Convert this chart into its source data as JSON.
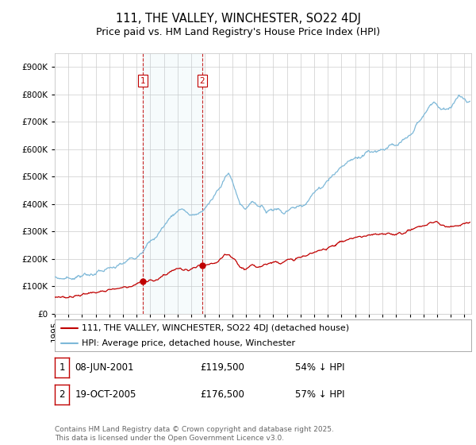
{
  "title": "111, THE VALLEY, WINCHESTER, SO22 4DJ",
  "subtitle": "Price paid vs. HM Land Registry's House Price Index (HPI)",
  "ylim": [
    0,
    950000
  ],
  "yticks": [
    0,
    100000,
    200000,
    300000,
    400000,
    500000,
    600000,
    700000,
    800000,
    900000
  ],
  "xlim_start": 1995.0,
  "xlim_end": 2025.5,
  "background_color": "#ffffff",
  "grid_color": "#cccccc",
  "hpi_color": "#7db8d8",
  "price_color": "#c00000",
  "purchase1_date": 2001.44,
  "purchase1_price": 119500,
  "purchase1_label": "1",
  "purchase2_date": 2005.8,
  "purchase2_price": 176500,
  "purchase2_label": "2",
  "legend_label_red": "111, THE VALLEY, WINCHESTER, SO22 4DJ (detached house)",
  "legend_label_blue": "HPI: Average price, detached house, Winchester",
  "table_row1": [
    "1",
    "08-JUN-2001",
    "£119,500",
    "54% ↓ HPI"
  ],
  "table_row2": [
    "2",
    "19-OCT-2005",
    "£176,500",
    "57% ↓ HPI"
  ],
  "footnote": "Contains HM Land Registry data © Crown copyright and database right 2025.\nThis data is licensed under the Open Government Licence v3.0.",
  "title_fontsize": 10.5,
  "subtitle_fontsize": 9,
  "tick_fontsize": 7.5,
  "legend_fontsize": 8,
  "table_fontsize": 8.5,
  "footnote_fontsize": 6.5,
  "hpi_anchors": [
    [
      1995.0,
      132000
    ],
    [
      1995.5,
      128000
    ],
    [
      1996.0,
      130000
    ],
    [
      1996.5,
      133000
    ],
    [
      1997.0,
      138000
    ],
    [
      1997.5,
      142000
    ],
    [
      1998.0,
      148000
    ],
    [
      1998.5,
      155000
    ],
    [
      1999.0,
      162000
    ],
    [
      1999.5,
      170000
    ],
    [
      2000.0,
      182000
    ],
    [
      2000.5,
      198000
    ],
    [
      2001.0,
      212000
    ],
    [
      2001.5,
      235000
    ],
    [
      2002.0,
      260000
    ],
    [
      2002.5,
      285000
    ],
    [
      2003.0,
      320000
    ],
    [
      2003.5,
      355000
    ],
    [
      2004.0,
      375000
    ],
    [
      2004.3,
      385000
    ],
    [
      2004.6,
      370000
    ],
    [
      2004.9,
      360000
    ],
    [
      2005.2,
      355000
    ],
    [
      2005.5,
      365000
    ],
    [
      2005.8,
      375000
    ],
    [
      2006.2,
      395000
    ],
    [
      2006.6,
      420000
    ],
    [
      2007.0,
      455000
    ],
    [
      2007.4,
      495000
    ],
    [
      2007.7,
      510000
    ],
    [
      2008.0,
      480000
    ],
    [
      2008.3,
      440000
    ],
    [
      2008.6,
      400000
    ],
    [
      2008.9,
      380000
    ],
    [
      2009.2,
      395000
    ],
    [
      2009.5,
      415000
    ],
    [
      2009.8,
      400000
    ],
    [
      2010.2,
      385000
    ],
    [
      2010.5,
      375000
    ],
    [
      2010.8,
      380000
    ],
    [
      2011.2,
      385000
    ],
    [
      2011.5,
      378000
    ],
    [
      2011.8,
      372000
    ],
    [
      2012.2,
      378000
    ],
    [
      2012.5,
      385000
    ],
    [
      2012.8,
      390000
    ],
    [
      2013.2,
      400000
    ],
    [
      2013.5,
      415000
    ],
    [
      2014.0,
      440000
    ],
    [
      2014.5,
      460000
    ],
    [
      2015.0,
      490000
    ],
    [
      2015.5,
      510000
    ],
    [
      2016.0,
      535000
    ],
    [
      2016.5,
      555000
    ],
    [
      2017.0,
      570000
    ],
    [
      2017.5,
      580000
    ],
    [
      2018.0,
      590000
    ],
    [
      2018.5,
      595000
    ],
    [
      2019.0,
      600000
    ],
    [
      2019.5,
      610000
    ],
    [
      2020.0,
      610000
    ],
    [
      2020.5,
      625000
    ],
    [
      2021.0,
      650000
    ],
    [
      2021.5,
      685000
    ],
    [
      2022.0,
      720000
    ],
    [
      2022.5,
      760000
    ],
    [
      2022.8,
      775000
    ],
    [
      2023.0,
      760000
    ],
    [
      2023.3,
      740000
    ],
    [
      2023.6,
      745000
    ],
    [
      2024.0,
      755000
    ],
    [
      2024.3,
      780000
    ],
    [
      2024.6,
      800000
    ],
    [
      2024.9,
      790000
    ],
    [
      2025.2,
      775000
    ],
    [
      2025.4,
      778000
    ]
  ],
  "price_anchors": [
    [
      1995.0,
      60000
    ],
    [
      1995.5,
      58000
    ],
    [
      1996.0,
      62000
    ],
    [
      1996.5,
      65000
    ],
    [
      1997.0,
      70000
    ],
    [
      1997.5,
      75000
    ],
    [
      1998.0,
      78000
    ],
    [
      1998.5,
      82000
    ],
    [
      1999.0,
      88000
    ],
    [
      1999.5,
      92000
    ],
    [
      2000.0,
      96000
    ],
    [
      2000.5,
      100000
    ],
    [
      2001.0,
      108000
    ],
    [
      2001.44,
      119500
    ],
    [
      2001.8,
      118000
    ],
    [
      2002.2,
      122000
    ],
    [
      2002.6,
      128000
    ],
    [
      2003.0,
      140000
    ],
    [
      2003.5,
      155000
    ],
    [
      2004.0,
      165000
    ],
    [
      2004.3,
      162000
    ],
    [
      2004.6,
      158000
    ],
    [
      2004.9,
      160000
    ],
    [
      2005.2,
      168000
    ],
    [
      2005.6,
      172000
    ],
    [
      2005.8,
      176500
    ],
    [
      2006.0,
      175000
    ],
    [
      2006.3,
      178000
    ],
    [
      2006.6,
      182000
    ],
    [
      2007.0,
      192000
    ],
    [
      2007.3,
      205000
    ],
    [
      2007.6,
      215000
    ],
    [
      2007.8,
      212000
    ],
    [
      2008.0,
      205000
    ],
    [
      2008.3,
      190000
    ],
    [
      2008.6,
      170000
    ],
    [
      2008.9,
      162000
    ],
    [
      2009.2,
      168000
    ],
    [
      2009.5,
      175000
    ],
    [
      2009.8,
      172000
    ],
    [
      2010.2,
      178000
    ],
    [
      2010.5,
      182000
    ],
    [
      2010.8,
      185000
    ],
    [
      2011.2,
      190000
    ],
    [
      2011.5,
      188000
    ],
    [
      2011.8,
      192000
    ],
    [
      2012.2,
      195000
    ],
    [
      2012.5,
      198000
    ],
    [
      2013.0,
      205000
    ],
    [
      2013.5,
      215000
    ],
    [
      2014.0,
      222000
    ],
    [
      2014.5,
      232000
    ],
    [
      2015.0,
      242000
    ],
    [
      2015.5,
      252000
    ],
    [
      2016.0,
      262000
    ],
    [
      2016.5,
      272000
    ],
    [
      2017.0,
      278000
    ],
    [
      2017.5,
      282000
    ],
    [
      2018.0,
      285000
    ],
    [
      2018.5,
      288000
    ],
    [
      2019.0,
      290000
    ],
    [
      2019.5,
      292000
    ],
    [
      2020.0,
      290000
    ],
    [
      2020.5,
      295000
    ],
    [
      2021.0,
      305000
    ],
    [
      2021.5,
      315000
    ],
    [
      2022.0,
      322000
    ],
    [
      2022.5,
      330000
    ],
    [
      2022.8,
      335000
    ],
    [
      2023.0,
      332000
    ],
    [
      2023.3,
      325000
    ],
    [
      2023.6,
      320000
    ],
    [
      2024.0,
      318000
    ],
    [
      2024.3,
      322000
    ],
    [
      2024.6,
      325000
    ],
    [
      2024.9,
      328000
    ],
    [
      2025.2,
      332000
    ],
    [
      2025.4,
      335000
    ]
  ]
}
